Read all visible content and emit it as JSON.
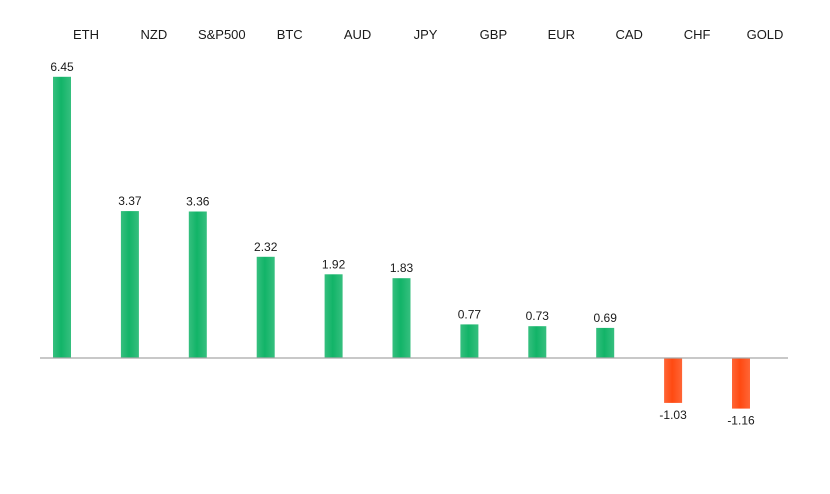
{
  "chart_data": {
    "type": "bar",
    "title": "",
    "xlabel": "",
    "ylabel": "",
    "categories": [
      "ETH",
      "NZD",
      "S&P500",
      "BTC",
      "AUD",
      "JPY",
      "GBP",
      "EUR",
      "CAD",
      "CHF",
      "GOLD"
    ],
    "values": [
      6.45,
      3.37,
      3.36,
      2.32,
      1.92,
      1.83,
      0.77,
      0.73,
      0.69,
      -1.03,
      -1.16
    ],
    "value_labels": [
      "6.45",
      "3.37",
      "3.36",
      "2.32",
      "1.92",
      "1.83",
      "0.77",
      "0.73",
      "0.69",
      "-1.03",
      "-1.16"
    ],
    "ylim": [
      -1.5,
      7
    ],
    "grid": false,
    "legend": "none",
    "category_label_position": "top",
    "colors": {
      "positive": "#12b468",
      "negative": "#ff4a12",
      "axis": "#a6a6a6",
      "text": "#1a1a1a"
    }
  }
}
